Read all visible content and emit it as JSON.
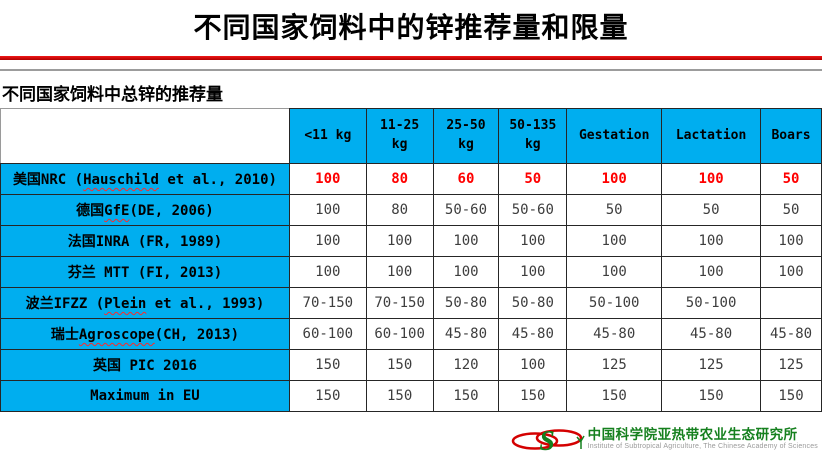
{
  "slide": {
    "title": "不同国家饲料中的锌推荐量和限量",
    "subtitle": "不同国家饲料中总锌的推荐量"
  },
  "table": {
    "columns": [
      "<11 kg",
      "11-25\nkg",
      "25-50\nkg",
      "50-135\nkg",
      "Gestation",
      "Lactation",
      "Boars"
    ],
    "rows": [
      {
        "label": [
          {
            "t": "美国NRC ("
          },
          {
            "t": "Hauschild",
            "misspelled": true
          },
          {
            "t": " et al., 2010)"
          }
        ],
        "values": [
          "100",
          "80",
          "60",
          "50",
          "100",
          "100",
          "50"
        ],
        "emphasis": true
      },
      {
        "label": [
          {
            "t": "德国"
          },
          {
            "t": "GfE",
            "misspelled": true
          },
          {
            "t": "(DE, 2006)"
          }
        ],
        "values": [
          "100",
          "80",
          "50-60",
          "50-60",
          "50",
          "50",
          "50"
        ],
        "emphasis": false
      },
      {
        "label": [
          {
            "t": "法国INRA (FR, 1989)"
          }
        ],
        "values": [
          "100",
          "100",
          "100",
          "100",
          "100",
          "100",
          "100"
        ],
        "emphasis": false
      },
      {
        "label": [
          {
            "t": "芬兰 MTT (FI, 2013)"
          }
        ],
        "values": [
          "100",
          "100",
          "100",
          "100",
          "100",
          "100",
          "100"
        ],
        "emphasis": false
      },
      {
        "label": [
          {
            "t": "波兰IFZZ ("
          },
          {
            "t": "Plein",
            "misspelled": true
          },
          {
            "t": " et al., 1993)"
          }
        ],
        "values": [
          "70-150",
          "70-150",
          "50-80",
          "50-80",
          "50-100",
          "50-100",
          ""
        ],
        "emphasis": false
      },
      {
        "label": [
          {
            "t": "瑞士"
          },
          {
            "t": "Agroscope",
            "misspelled": true
          },
          {
            "t": "(CH, 2013)"
          }
        ],
        "values": [
          "60-100",
          "60-100",
          "45-80",
          "45-80",
          "45-80",
          "45-80",
          "45-80"
        ],
        "emphasis": false
      },
      {
        "label": [
          {
            "t": "英国 PIC 2016"
          }
        ],
        "values": [
          "150",
          "150",
          "120",
          "100",
          "125",
          "125",
          "125"
        ],
        "emphasis": false
      },
      {
        "label": [
          {
            "t": "Maximum in EU"
          }
        ],
        "values": [
          "150",
          "150",
          "150",
          "150",
          "150",
          "150",
          "150"
        ],
        "emphasis": false
      }
    ]
  },
  "footer": {
    "org_name_cn": "中国科学院亚热带农业生态研究所",
    "org_name_en": "Institute of Subtropical Agriculture, The Chinese Academy of Sciences"
  },
  "colors": {
    "header_cyan": "#00AEEF",
    "emphasis_red": "#FF0000",
    "divider_red": "#E60000",
    "logo_green": "#15801E"
  }
}
